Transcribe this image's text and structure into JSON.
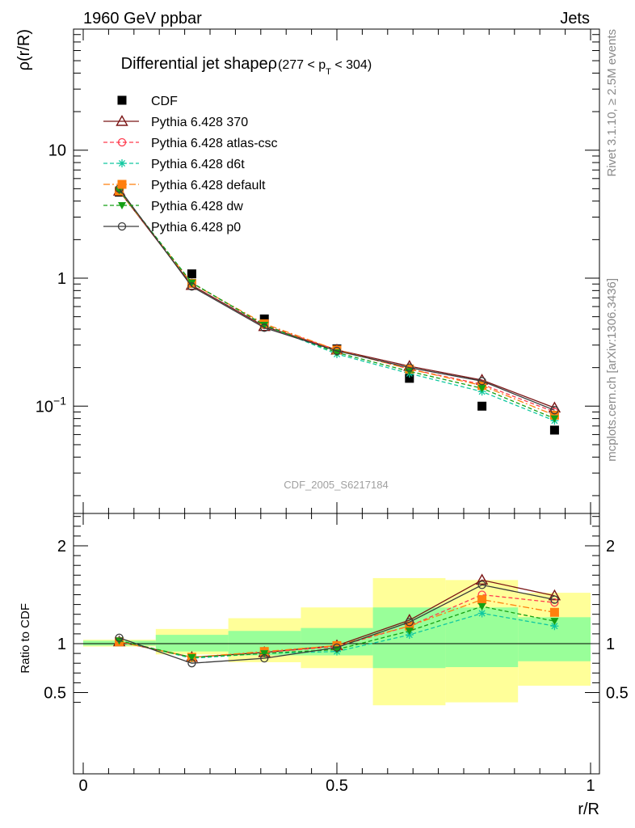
{
  "header": {
    "left": "1960 GeV ppbar",
    "right": "Jets"
  },
  "title": {
    "main": "Differential jet shape",
    "rho": "ρ",
    "range_pre": "(277 < p",
    "range_sub": "T",
    "range_post": " < 304)"
  },
  "watermark": "CDF_2005_S6217184",
  "side_labels": {
    "rivet": "Rivet 3.1.10, ≥ 2.5M events",
    "mcplots": "mcplots.cern.ch [arXiv:1306.3436]"
  },
  "colors": {
    "band_inner": "#99ff99",
    "band_outer": "#ffff99",
    "data": "#000000"
  },
  "chart_data": [
    {
      "type": "line",
      "panel": "main",
      "ylabel": "ρ(r/R)",
      "xlim": [
        0,
        1
      ],
      "ylim": [
        0.02,
        60
      ],
      "yscale": "log",
      "y_ticks": [
        {
          "v": 10,
          "label": "10"
        },
        {
          "v": 1,
          "label": "1"
        },
        {
          "v": 0.1,
          "label": "10",
          "sup": "−1"
        }
      ],
      "x": [
        0.071,
        0.214,
        0.357,
        0.5,
        0.643,
        0.786,
        0.929
      ],
      "series": [
        {
          "name": "CDF",
          "marker": "square",
          "color": "#000000",
          "line": "none",
          "values": [
            4.7,
            1.08,
            0.48,
            0.28,
            0.165,
            0.1,
            0.065
          ]
        },
        {
          "name": "Pythia 6.428 370",
          "marker": "triangle-open",
          "color": "#7b1616",
          "line": "solid",
          "values": [
            4.8,
            0.88,
            0.42,
            0.275,
            0.205,
            0.16,
            0.097
          ]
        },
        {
          "name": "Pythia 6.428 atlas-csc",
          "marker": "circle-open",
          "color": "#ff3b4e",
          "line": "dashed",
          "values": [
            4.8,
            0.92,
            0.43,
            0.275,
            0.195,
            0.148,
            0.09
          ]
        },
        {
          "name": "Pythia 6.428 d6t",
          "marker": "star",
          "color": "#10c8a0",
          "line": "dashed",
          "values": [
            4.85,
            0.92,
            0.43,
            0.255,
            0.18,
            0.13,
            0.077
          ]
        },
        {
          "name": "Pythia 6.428 default",
          "marker": "square",
          "color": "#ff7f0e",
          "line": "dashdot",
          "values": [
            4.8,
            0.91,
            0.44,
            0.275,
            0.195,
            0.145,
            0.085
          ]
        },
        {
          "name": "Pythia 6.428 dw",
          "marker": "triangle-down",
          "color": "#14a014",
          "line": "dashed",
          "values": [
            4.85,
            0.92,
            0.43,
            0.262,
            0.187,
            0.138,
            0.08
          ]
        },
        {
          "name": "Pythia 6.428 p0",
          "marker": "circle-open",
          "color": "#3a3a3a",
          "line": "solid",
          "values": [
            5.0,
            0.86,
            0.41,
            0.27,
            0.2,
            0.157,
            0.093
          ]
        }
      ],
      "legend": "top-left"
    },
    {
      "type": "line",
      "panel": "ratio",
      "ylabel": "Ratio to CDF",
      "xlabel": "r/R",
      "xlim": [
        0,
        1
      ],
      "ylim": [
        0.4,
        2.3
      ],
      "y_ticks": [
        {
          "v": 2,
          "label": "2"
        },
        {
          "v": 1,
          "label": "1"
        },
        {
          "v": 0.5,
          "label": "0.5"
        }
      ],
      "x_ticks": [
        {
          "v": 0,
          "label": "0"
        },
        {
          "v": 0.5,
          "label": "0.5"
        },
        {
          "v": 1,
          "label": "1"
        }
      ],
      "bins": [
        [
          0,
          0.143
        ],
        [
          0.143,
          0.286
        ],
        [
          0.286,
          0.429
        ],
        [
          0.429,
          0.571
        ],
        [
          0.571,
          0.714
        ],
        [
          0.714,
          0.857
        ],
        [
          0.857,
          1.0
        ]
      ],
      "band_inner": [
        [
          0.98,
          1.03
        ],
        [
          0.92,
          1.09
        ],
        [
          0.88,
          1.13
        ],
        [
          0.88,
          1.16
        ],
        [
          0.75,
          1.37
        ],
        [
          0.76,
          1.37
        ],
        [
          0.82,
          1.27
        ]
      ],
      "band_outer": [
        [
          0.97,
          1.04
        ],
        [
          0.89,
          1.15
        ],
        [
          0.81,
          1.26
        ],
        [
          0.75,
          1.37
        ],
        [
          0.37,
          1.67
        ],
        [
          0.4,
          1.65
        ],
        [
          0.57,
          1.52
        ]
      ],
      "x": [
        0.071,
        0.214,
        0.357,
        0.5,
        0.643,
        0.786,
        0.929
      ],
      "series": [
        {
          "name": "Pythia 6.428 370",
          "marker": "triangle-open",
          "color": "#7b1616",
          "line": "solid",
          "values": [
            1.02,
            0.86,
            0.91,
            0.98,
            1.24,
            1.65,
            1.49
          ]
        },
        {
          "name": "Pythia 6.428 atlas-csc",
          "marker": "circle-open",
          "color": "#ff3b4e",
          "line": "dashed",
          "values": [
            1.02,
            0.86,
            0.91,
            0.97,
            1.18,
            1.5,
            1.42
          ]
        },
        {
          "name": "Pythia 6.428 d6t",
          "marker": "star",
          "color": "#10c8a0",
          "line": "dashed",
          "values": [
            1.03,
            0.85,
            0.9,
            0.92,
            1.09,
            1.31,
            1.18
          ]
        },
        {
          "name": "Pythia 6.428 default",
          "marker": "square",
          "color": "#ff7f0e",
          "line": "dashdot",
          "values": [
            1.02,
            0.86,
            0.92,
            0.98,
            1.18,
            1.45,
            1.32
          ]
        },
        {
          "name": "Pythia 6.428 dw",
          "marker": "triangle-down",
          "color": "#14a014",
          "line": "dashed",
          "values": [
            1.03,
            0.86,
            0.9,
            0.94,
            1.13,
            1.38,
            1.23
          ]
        },
        {
          "name": "Pythia 6.428 p0",
          "marker": "circle-open",
          "color": "#3a3a3a",
          "line": "solid",
          "values": [
            1.06,
            0.8,
            0.85,
            0.96,
            1.22,
            1.6,
            1.45
          ]
        }
      ]
    }
  ]
}
